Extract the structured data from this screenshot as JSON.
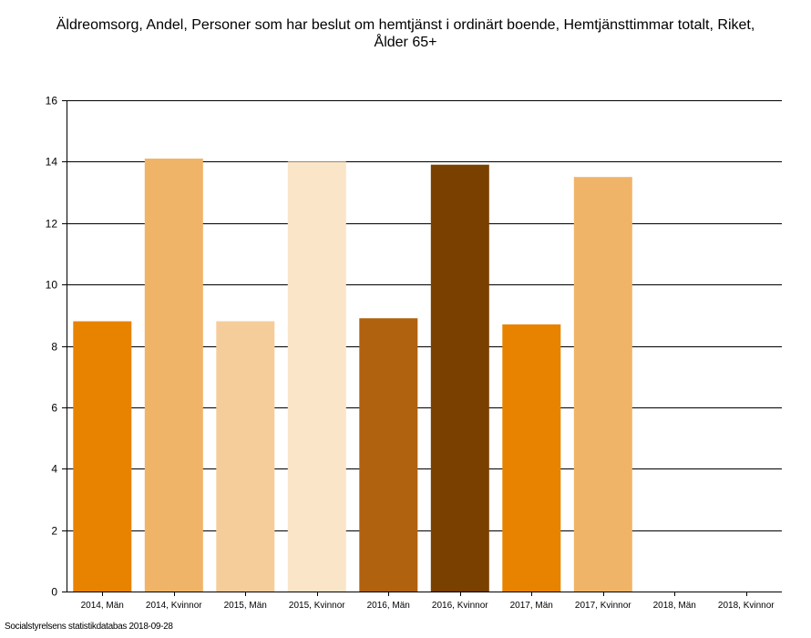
{
  "chart_data": {
    "type": "bar",
    "title_lines": [
      "Äldreomsorg, Andel, Personer som har beslut om hemtjänst i ordinärt boende, Hemtjänsttimmar totalt, Riket,",
      "Ålder 65+"
    ],
    "categories": [
      "2014, Män",
      "2014, Kvinnor",
      "2015, Män",
      "2015, Kvinnor",
      "2016, Män",
      "2016, Kvinnor",
      "2017, Män",
      "2017, Kvinnor",
      "2018, Män",
      "2018, Kvinnor"
    ],
    "values": [
      8.8,
      14.1,
      8.8,
      14.0,
      8.9,
      13.9,
      8.7,
      13.5,
      null,
      null
    ],
    "bar_colors": [
      "#E88300",
      "#F0B469",
      "#F5CD9A",
      "#FBE5C8",
      "#B0620F",
      "#7A4000",
      "#E88300",
      "#F0B469",
      "#E88300",
      "#F0B469"
    ],
    "ylim": [
      0,
      16
    ],
    "yticks": [
      "0",
      "2",
      "4",
      "6",
      "8",
      "10",
      "12",
      "14",
      "16"
    ],
    "grid": true,
    "xlabel": "",
    "ylabel": ""
  },
  "source": "Socialstyrelsens statistikdatabas 2018-09-28"
}
